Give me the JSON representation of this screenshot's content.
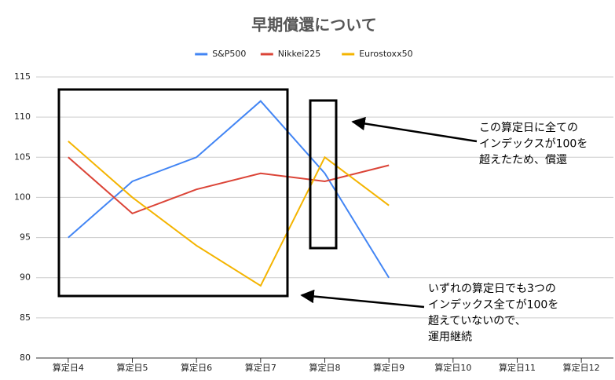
{
  "chart_data": {
    "type": "line",
    "title": "早期償還について",
    "categories": [
      "算定日4",
      "算定日5",
      "算定日6",
      "算定日7",
      "算定日8",
      "算定日9",
      "算定日10",
      "算定日11",
      "算定日12"
    ],
    "series": [
      {
        "name": "S&P500",
        "color": "#4285f4",
        "values": [
          95,
          102,
          105,
          112,
          103,
          90,
          null,
          null,
          null
        ]
      },
      {
        "name": "Nikkei225",
        "color": "#db4437",
        "values": [
          105,
          98,
          101,
          103,
          102,
          104,
          null,
          null,
          null
        ]
      },
      {
        "name": "Eurostoxx50",
        "color": "#f4b400",
        "values": [
          107,
          100,
          94,
          89,
          105,
          99,
          null,
          null,
          null
        ]
      }
    ],
    "ylim": [
      80,
      115
    ],
    "yticks": [
      80,
      85,
      90,
      95,
      100,
      105,
      110,
      115
    ],
    "grid": true,
    "legend": "top",
    "annotations": [
      {
        "lines": [
          "この算定日に全ての",
          "インデックスが100を",
          "超えたため、償還"
        ]
      },
      {
        "lines": [
          "いずれの算定日でも3つの",
          "インデックス全てが100を",
          "超えていないので、",
          "運用継続"
        ]
      }
    ]
  }
}
